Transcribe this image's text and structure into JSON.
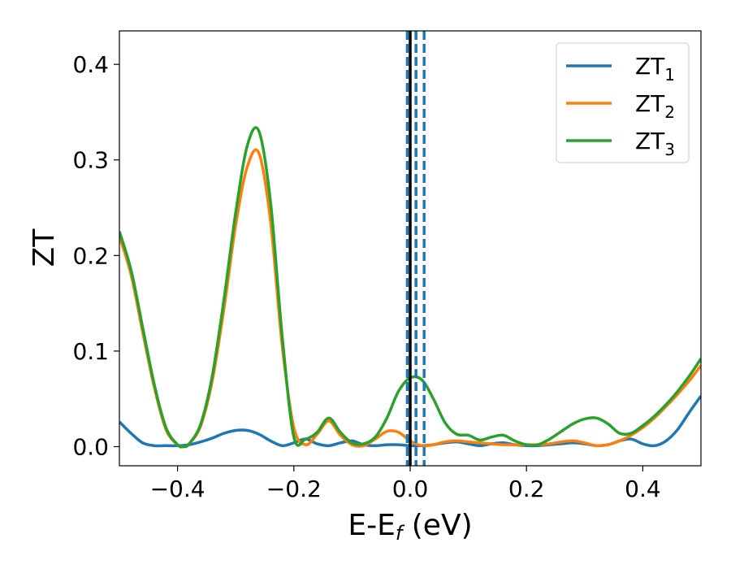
{
  "chart_data": {
    "type": "line",
    "title": "",
    "xlabel": "E-E",
    "xlabel_sub": "f",
    "xlabel_unit": " (eV)",
    "ylabel": "ZT",
    "xlim": [
      -0.5,
      0.5
    ],
    "ylim": [
      -0.02,
      0.435
    ],
    "xticks": [
      -0.4,
      -0.2,
      0.0,
      0.2,
      0.4
    ],
    "xtick_labels": [
      "−0.4",
      "−0.2",
      "0.0",
      "0.2",
      "0.4"
    ],
    "yticks": [
      0.0,
      0.1,
      0.2,
      0.3,
      0.4
    ],
    "ytick_labels": [
      "0.0",
      "0.1",
      "0.2",
      "0.3",
      "0.4"
    ],
    "grid": false,
    "legend_position": "top-right",
    "vlines": [
      {
        "x": 0.0,
        "style": "solid",
        "color": "#000000"
      },
      {
        "x": -0.005,
        "style": "dashed",
        "color": "#1f77b4"
      },
      {
        "x": 0.01,
        "style": "dashed",
        "color": "#1f77b4"
      },
      {
        "x": 0.024,
        "style": "dashed",
        "color": "#1f77b4"
      }
    ],
    "series": [
      {
        "name": "ZT",
        "subscript": "1",
        "color": "#1f77b4",
        "x": [
          -0.5,
          -0.48,
          -0.46,
          -0.44,
          -0.42,
          -0.4,
          -0.38,
          -0.36,
          -0.34,
          -0.32,
          -0.3,
          -0.28,
          -0.26,
          -0.24,
          -0.22,
          -0.2,
          -0.18,
          -0.16,
          -0.14,
          -0.12,
          -0.1,
          -0.08,
          -0.06,
          -0.04,
          -0.02,
          0.0,
          0.02,
          0.04,
          0.06,
          0.08,
          0.1,
          0.12,
          0.14,
          0.16,
          0.18,
          0.2,
          0.22,
          0.24,
          0.26,
          0.28,
          0.3,
          0.32,
          0.34,
          0.36,
          0.38,
          0.4,
          0.42,
          0.44,
          0.46,
          0.48,
          0.5
        ],
        "y": [
          0.026,
          0.014,
          0.004,
          0.001,
          0.001,
          0.001,
          0.002,
          0.005,
          0.009,
          0.014,
          0.017,
          0.017,
          0.013,
          0.006,
          0.001,
          0.004,
          0.008,
          0.003,
          0.001,
          0.004,
          0.006,
          0.002,
          0.001,
          0.002,
          0.002,
          0.001,
          0.001,
          0.002,
          0.004,
          0.005,
          0.003,
          0.001,
          0.003,
          0.004,
          0.002,
          0.001,
          0.001,
          0.002,
          0.003,
          0.004,
          0.003,
          0.001,
          0.002,
          0.006,
          0.008,
          0.003,
          0.001,
          0.006,
          0.018,
          0.036,
          0.053
        ]
      },
      {
        "name": "ZT",
        "subscript": "2",
        "color": "#ff7f0e",
        "x": [
          -0.5,
          -0.48,
          -0.46,
          -0.44,
          -0.42,
          -0.4,
          -0.39,
          -0.38,
          -0.36,
          -0.34,
          -0.32,
          -0.3,
          -0.28,
          -0.26,
          -0.24,
          -0.22,
          -0.2,
          -0.18,
          -0.16,
          -0.14,
          -0.12,
          -0.1,
          -0.08,
          -0.06,
          -0.04,
          -0.02,
          0.0,
          0.02,
          0.04,
          0.06,
          0.08,
          0.1,
          0.12,
          0.14,
          0.16,
          0.18,
          0.2,
          0.22,
          0.24,
          0.26,
          0.28,
          0.3,
          0.32,
          0.34,
          0.36,
          0.38,
          0.4,
          0.42,
          0.44,
          0.46,
          0.48,
          0.5
        ],
        "y": [
          0.22,
          0.18,
          0.12,
          0.062,
          0.018,
          0.002,
          0.0,
          0.003,
          0.022,
          0.07,
          0.145,
          0.232,
          0.293,
          0.307,
          0.235,
          0.105,
          0.02,
          0.002,
          0.013,
          0.027,
          0.012,
          0.002,
          0.001,
          0.008,
          0.016,
          0.015,
          0.006,
          0.001,
          0.002,
          0.005,
          0.006,
          0.005,
          0.004,
          0.003,
          0.002,
          0.002,
          0.002,
          0.002,
          0.003,
          0.005,
          0.006,
          0.004,
          0.001,
          0.002,
          0.006,
          0.012,
          0.02,
          0.03,
          0.042,
          0.055,
          0.069,
          0.085
        ]
      },
      {
        "name": "ZT",
        "subscript": "3",
        "color": "#2ca02c",
        "x": [
          -0.5,
          -0.48,
          -0.46,
          -0.44,
          -0.42,
          -0.4,
          -0.39,
          -0.38,
          -0.36,
          -0.34,
          -0.32,
          -0.3,
          -0.28,
          -0.26,
          -0.24,
          -0.22,
          -0.2,
          -0.18,
          -0.16,
          -0.14,
          -0.12,
          -0.1,
          -0.08,
          -0.06,
          -0.04,
          -0.02,
          0.0,
          0.02,
          0.04,
          0.06,
          0.08,
          0.1,
          0.12,
          0.14,
          0.16,
          0.18,
          0.2,
          0.22,
          0.24,
          0.26,
          0.28,
          0.3,
          0.32,
          0.34,
          0.36,
          0.38,
          0.4,
          0.42,
          0.44,
          0.46,
          0.48,
          0.5
        ],
        "y": [
          0.225,
          0.185,
          0.125,
          0.065,
          0.02,
          0.002,
          0.0,
          0.003,
          0.024,
          0.075,
          0.155,
          0.245,
          0.315,
          0.33,
          0.255,
          0.115,
          0.01,
          0.008,
          0.015,
          0.03,
          0.015,
          0.004,
          0.003,
          0.01,
          0.03,
          0.058,
          0.072,
          0.07,
          0.05,
          0.025,
          0.013,
          0.012,
          0.007,
          0.01,
          0.012,
          0.006,
          0.002,
          0.002,
          0.008,
          0.016,
          0.024,
          0.029,
          0.03,
          0.024,
          0.014,
          0.014,
          0.022,
          0.032,
          0.044,
          0.058,
          0.074,
          0.092
        ]
      }
    ]
  }
}
